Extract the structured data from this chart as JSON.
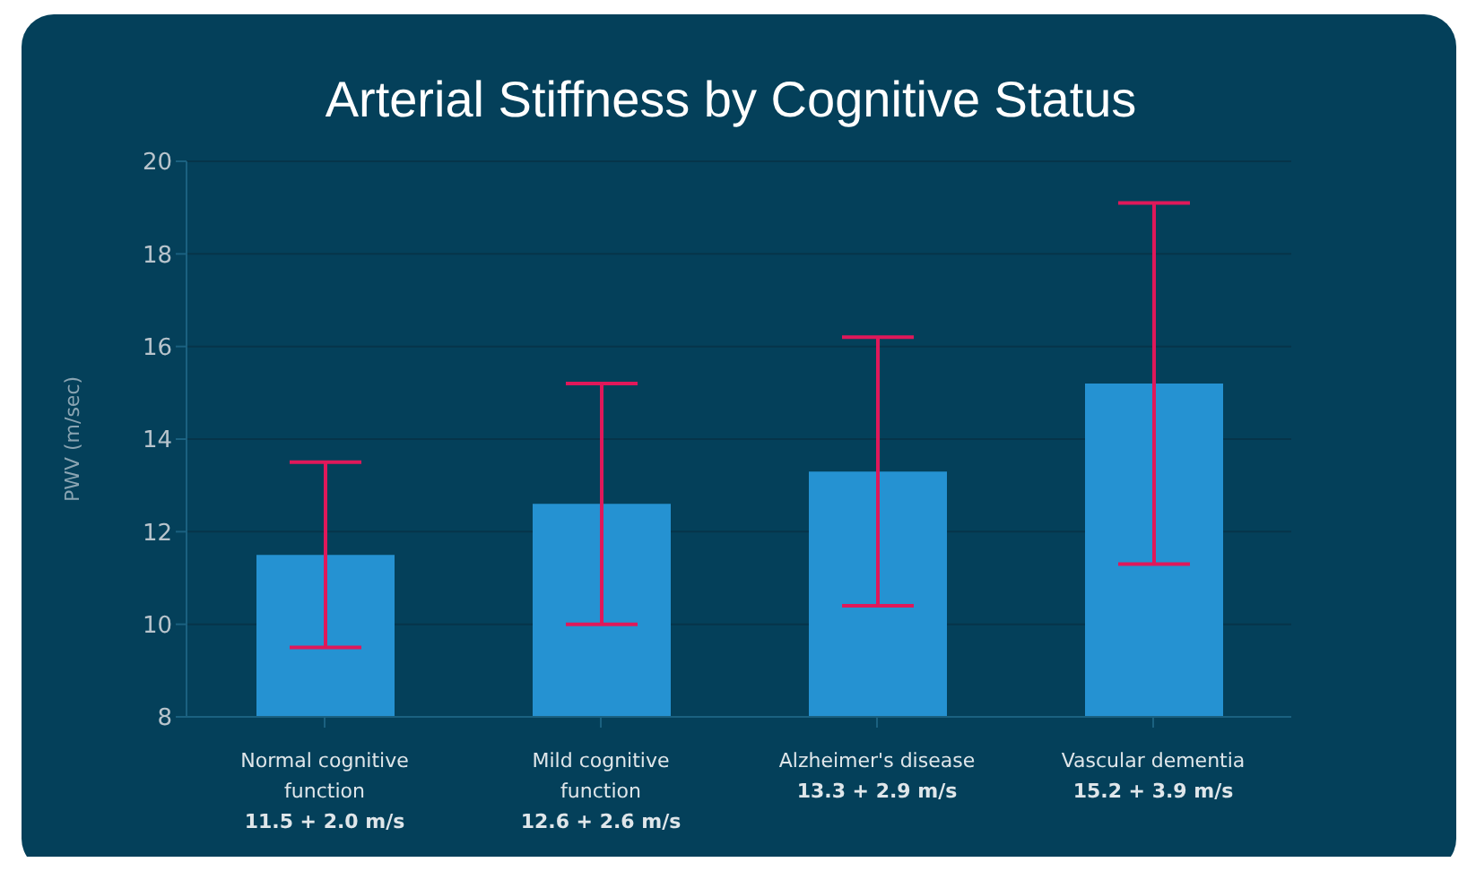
{
  "chart_data": {
    "type": "bar",
    "title": "Arterial Stiffness by Cognitive Status",
    "ylabel": "PWV (m/sec)",
    "categories": [
      "Normal cognitive function",
      "Mild cognitive function",
      "Alzheimer's disease",
      "Vascular dementia"
    ],
    "values": [
      11.5,
      12.6,
      13.3,
      15.2
    ],
    "errors": [
      2.0,
      2.6,
      2.9,
      3.9
    ],
    "annotations": [
      "11.5 + 2.0 m/s",
      "12.6 + 2.6 m/s",
      "13.3 + 2.9 m/s",
      "15.2 + 3.9 m/s"
    ],
    "color": "#2592d2",
    "ylim": [
      8,
      20
    ],
    "yticks": [
      8,
      10,
      12,
      14,
      16,
      18,
      20
    ],
    "grid": "y",
    "legend": false
  }
}
